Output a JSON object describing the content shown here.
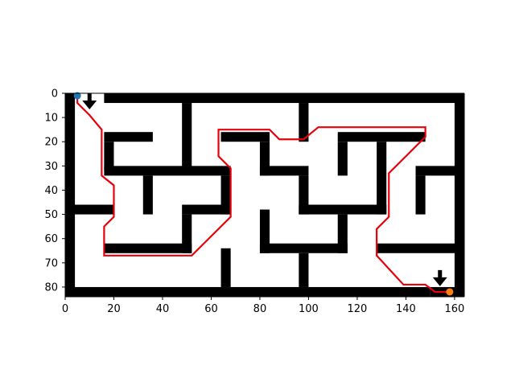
{
  "chart_data": {
    "type": "maze-path",
    "title": "",
    "xlabel": "",
    "ylabel": "",
    "xlim": [
      0,
      164
    ],
    "ylim": [
      84,
      0
    ],
    "xticks": [
      "0",
      "20",
      "40",
      "60",
      "80",
      "100",
      "120",
      "140",
      "160"
    ],
    "yticks": [
      "0",
      "10",
      "20",
      "30",
      "40",
      "50",
      "60",
      "70",
      "80"
    ],
    "grid": false,
    "colors": {
      "wall": "#000000",
      "path": "#e8000b",
      "start": "#1f77b4",
      "end": "#ff7f0e",
      "background": "#ffffff"
    },
    "walls": [
      [
        0,
        0,
        4,
        84
      ],
      [
        160,
        0,
        164,
        84
      ],
      [
        16,
        0,
        164,
        4
      ],
      [
        0,
        80,
        150,
        84
      ],
      [
        150,
        80,
        164,
        84
      ],
      [
        48,
        4,
        52,
        32
      ],
      [
        96,
        4,
        100,
        20
      ],
      [
        16,
        16,
        36,
        20
      ],
      [
        16,
        20,
        20,
        32
      ],
      [
        16,
        30,
        68,
        34
      ],
      [
        64,
        34,
        68,
        50
      ],
      [
        64,
        16,
        84,
        20
      ],
      [
        80,
        20,
        84,
        34
      ],
      [
        80,
        30,
        100,
        34
      ],
      [
        112,
        16,
        148,
        20
      ],
      [
        112,
        20,
        116,
        34
      ],
      [
        128,
        20,
        132,
        50
      ],
      [
        96,
        34,
        100,
        50
      ],
      [
        96,
        46,
        132,
        50
      ],
      [
        144,
        30,
        164,
        34
      ],
      [
        144,
        34,
        148,
        50
      ],
      [
        32,
        34,
        36,
        50
      ],
      [
        0,
        46,
        20,
        50
      ],
      [
        48,
        46,
        68,
        50
      ],
      [
        48,
        50,
        52,
        66
      ],
      [
        16,
        62,
        52,
        66
      ],
      [
        80,
        48,
        84,
        66
      ],
      [
        80,
        62,
        116,
        66
      ],
      [
        112,
        50,
        116,
        66
      ],
      [
        128,
        62,
        164,
        66
      ],
      [
        64,
        64,
        68,
        80
      ],
      [
        96,
        66,
        100,
        80
      ]
    ],
    "arrows": [
      {
        "name": "start-arrow",
        "x": 10,
        "y": 0,
        "direction": "down"
      },
      {
        "name": "end-arrow",
        "x": 154,
        "y": 73,
        "direction": "down"
      }
    ],
    "path": [
      [
        5,
        1
      ],
      [
        5,
        4
      ],
      [
        10,
        9
      ],
      [
        15,
        15
      ],
      [
        15,
        34
      ],
      [
        20,
        38
      ],
      [
        20,
        51
      ],
      [
        16,
        55
      ],
      [
        16,
        67
      ],
      [
        52,
        67
      ],
      [
        68,
        51
      ],
      [
        68,
        31
      ],
      [
        63,
        26
      ],
      [
        63,
        15
      ],
      [
        84,
        15
      ],
      [
        88,
        19
      ],
      [
        98,
        19
      ],
      [
        104,
        14
      ],
      [
        148,
        14
      ],
      [
        148,
        18
      ],
      [
        133,
        33
      ],
      [
        133,
        51
      ],
      [
        128,
        56
      ],
      [
        128,
        67
      ],
      [
        139,
        79
      ],
      [
        148,
        79
      ],
      [
        152,
        82
      ],
      [
        158,
        82
      ]
    ],
    "start": {
      "x": 5,
      "y": 1
    },
    "end": {
      "x": 158,
      "y": 82
    }
  }
}
